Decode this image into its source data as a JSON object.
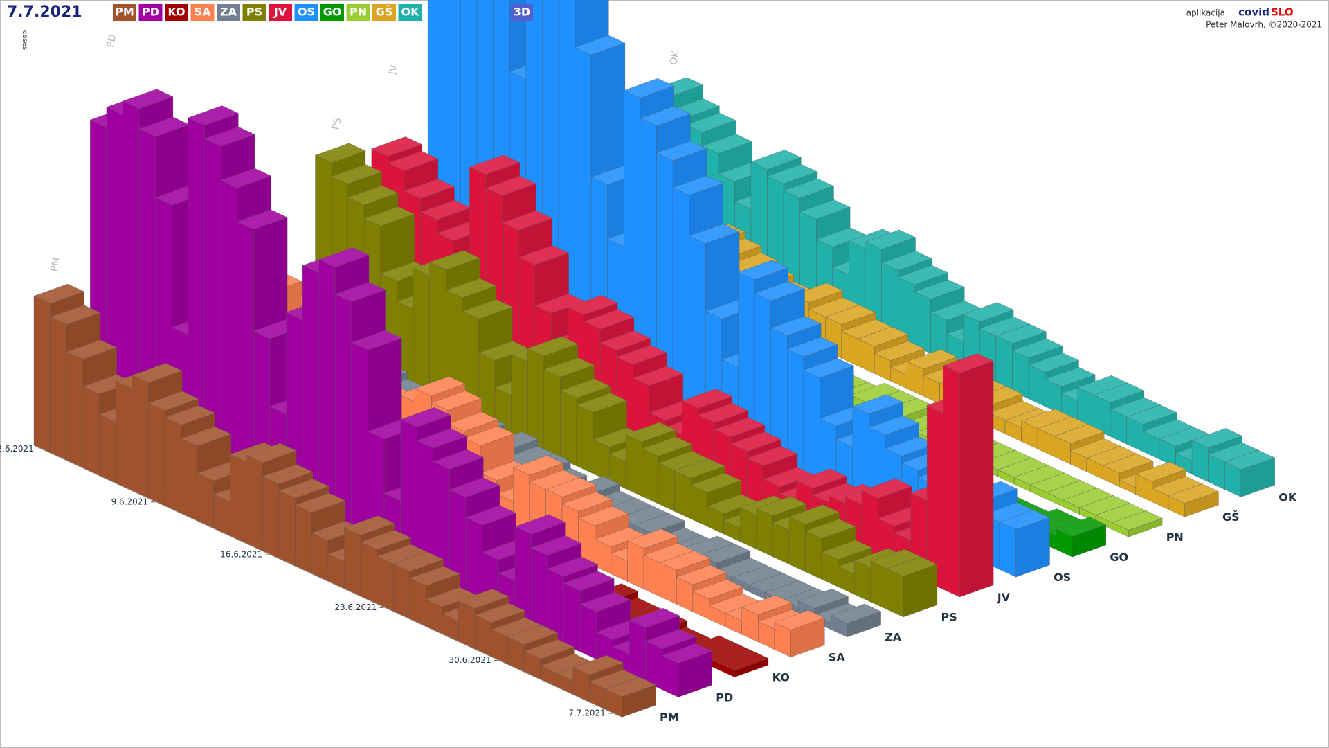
{
  "header": {
    "date": "7.7.2021",
    "mode_button": "3D",
    "app_prefix": "aplikacija",
    "app_name_1": "covid",
    "app_name_2": "SLO",
    "author": "Peter Malovrh, ©2020-2021"
  },
  "chart_data": {
    "type": "bar3d",
    "y_label": "cases",
    "categories": [
      "2.6.2021",
      null,
      null,
      null,
      null,
      null,
      null,
      "9.6.2021",
      null,
      null,
      null,
      null,
      null,
      null,
      "16.6.2021",
      null,
      null,
      null,
      null,
      null,
      null,
      "23.6.2021",
      null,
      null,
      null,
      null,
      null,
      null,
      "30.6.2021",
      null,
      null,
      null,
      null,
      null,
      null,
      "7.7.2021"
    ],
    "series": [
      {
        "name": "PM",
        "color": "#a0522d",
        "values": [
          22,
          20,
          16,
          12,
          9,
          15,
          17,
          14,
          13,
          11,
          7,
          5,
          12,
          13,
          11,
          10,
          9,
          6,
          4,
          9,
          8,
          7,
          7,
          6,
          4,
          3,
          6,
          5,
          4,
          4,
          3,
          2,
          2,
          4,
          3,
          3
        ]
      },
      {
        "name": "PD",
        "color": "#a000a0",
        "values": [
          45,
          48,
          50,
          47,
          38,
          20,
          52,
          50,
          45,
          40,
          25,
          15,
          30,
          38,
          40,
          36,
          30,
          18,
          10,
          22,
          20,
          18,
          15,
          12,
          8,
          6,
          14,
          12,
          10,
          9,
          7,
          4,
          3,
          8,
          6,
          5
        ]
      },
      {
        "name": "KO",
        "color": "#a00000",
        "values": [
          4,
          3,
          5,
          3,
          2,
          2,
          4,
          3,
          3,
          2,
          1,
          1,
          3,
          2,
          3,
          2,
          2,
          1,
          1,
          2,
          2,
          1,
          2,
          1,
          1,
          0,
          1,
          2,
          1,
          1,
          1,
          0,
          0,
          1,
          1,
          1
        ]
      },
      {
        "name": "SA",
        "color": "#ff8050",
        "values": [
          30,
          25,
          22,
          18,
          12,
          14,
          20,
          18,
          16,
          14,
          9,
          6,
          12,
          14,
          13,
          11,
          10,
          6,
          4,
          9,
          8,
          8,
          7,
          6,
          4,
          3,
          6,
          5,
          5,
          4,
          3,
          2,
          2,
          4,
          3,
          4
        ]
      },
      {
        "name": "ZA",
        "color": "#708090",
        "values": [
          6,
          5,
          4,
          5,
          3,
          2,
          5,
          4,
          4,
          3,
          2,
          1,
          4,
          3,
          4,
          3,
          3,
          2,
          1,
          3,
          2,
          2,
          2,
          2,
          1,
          1,
          2,
          2,
          1,
          1,
          1,
          1,
          1,
          2,
          1,
          2
        ]
      },
      {
        "name": "PS",
        "color": "#808000",
        "values": [
          28,
          26,
          24,
          22,
          15,
          12,
          18,
          20,
          17,
          15,
          10,
          6,
          12,
          14,
          12,
          10,
          9,
          5,
          4,
          8,
          7,
          6,
          6,
          5,
          3,
          2,
          5,
          6,
          5,
          7,
          6,
          4,
          3,
          5,
          6,
          6
        ]
      },
      {
        "name": "JV",
        "color": "#dc143c",
        "values": [
          26,
          25,
          22,
          20,
          18,
          14,
          30,
          28,
          24,
          20,
          14,
          10,
          16,
          15,
          13,
          12,
          10,
          6,
          5,
          10,
          9,
          8,
          7,
          6,
          4,
          3,
          6,
          5,
          6,
          7,
          9,
          6,
          5,
          12,
          26,
          33
        ]
      },
      {
        "name": "OS",
        "color": "#1e90ff",
        "values": [
          90,
          85,
          80,
          75,
          60,
          40,
          70,
          65,
          55,
          48,
          30,
          22,
          45,
          42,
          38,
          34,
          28,
          18,
          12,
          26,
          24,
          20,
          18,
          16,
          10,
          8,
          14,
          12,
          10,
          9,
          8,
          5,
          4,
          9,
          7,
          7
        ]
      },
      {
        "name": "GO",
        "color": "#009900",
        "values": [
          8,
          7,
          6,
          5,
          4,
          3,
          6,
          5,
          4,
          4,
          3,
          2,
          4,
          3,
          3,
          3,
          2,
          2,
          1,
          2,
          2,
          2,
          2,
          1,
          1,
          1,
          2,
          1,
          1,
          1,
          1,
          1,
          1,
          2,
          2,
          3
        ]
      },
      {
        "name": "PN",
        "color": "#9acd32",
        "values": [
          6,
          5,
          5,
          4,
          3,
          2,
          5,
          4,
          4,
          3,
          2,
          1,
          3,
          3,
          3,
          2,
          2,
          1,
          1,
          2,
          2,
          2,
          1,
          1,
          1,
          1,
          1,
          1,
          1,
          1,
          1,
          1,
          1,
          1,
          1,
          1
        ]
      },
      {
        "name": "GŠ",
        "color": "#daa520",
        "values": [
          8,
          7,
          7,
          6,
          5,
          4,
          8,
          7,
          6,
          5,
          4,
          3,
          6,
          5,
          5,
          4,
          4,
          3,
          2,
          4,
          3,
          3,
          3,
          3,
          2,
          2,
          3,
          3,
          3,
          2,
          2,
          2,
          1,
          3,
          2,
          2
        ]
      },
      {
        "name": "OK",
        "color": "#20b2aa",
        "values": [
          20,
          18,
          17,
          15,
          12,
          9,
          16,
          15,
          14,
          12,
          9,
          6,
          11,
          12,
          10,
          9,
          8,
          6,
          4,
          8,
          7,
          7,
          6,
          5,
          4,
          3,
          5,
          5,
          4,
          4,
          3,
          3,
          2,
          5,
          4,
          4
        ]
      }
    ]
  }
}
